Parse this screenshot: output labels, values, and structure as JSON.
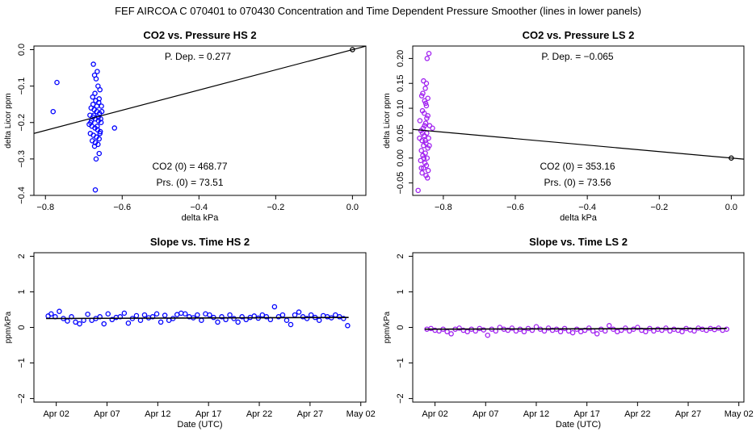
{
  "figure": {
    "suptitle": "FEF   AIRCOA C   070401 to 070430   Concentration and Time Dependent Pressure Smoother (lines in lower panels)"
  },
  "chart_data": [
    {
      "type": "scatter",
      "title": "CO2 vs. Pressure HS 2",
      "xlabel": "delta kPa",
      "ylabel": "delta Licor ppm",
      "xlim": [
        -0.83,
        0.035
      ],
      "ylim": [
        -0.4,
        0.01
      ],
      "xticks": [
        -0.8,
        -0.6,
        -0.4,
        -0.2,
        0.0
      ],
      "xtick_labels": [
        "−0.8",
        "−0.6",
        "−0.4",
        "−0.2",
        "0.0"
      ],
      "yticks": [
        0.0,
        -0.1,
        -0.2,
        -0.3,
        -0.4
      ],
      "ytick_labels": [
        "0.0",
        "−0.1",
        "−0.2",
        "−0.3",
        "−0.4"
      ],
      "point_color": "#0000ff",
      "fit_line": {
        "slope": 0.277,
        "intercept": 0.0,
        "color": "#000000"
      },
      "origin_point": {
        "x": 0.0,
        "y": 0.0
      },
      "annotations": {
        "p_dep": "P. Dep. =  0.277",
        "co2_zero": "CO2 (0) =  468.77",
        "prs_zero": "Prs. (0) =  73.51"
      },
      "points": [
        {
          "x": -0.78,
          "y": -0.17
        },
        {
          "x": -0.77,
          "y": -0.09
        },
        {
          "x": -0.62,
          "y": -0.215
        },
        {
          "x": -0.675,
          "y": -0.04
        },
        {
          "x": -0.67,
          "y": -0.385
        },
        {
          "x": -0.66,
          "y": -0.285
        },
        {
          "x": -0.665,
          "y": -0.06
        },
        {
          "x": -0.672,
          "y": -0.07
        },
        {
          "x": -0.668,
          "y": -0.3
        },
        {
          "x": -0.663,
          "y": -0.1
        },
        {
          "x": -0.658,
          "y": -0.11
        },
        {
          "x": -0.677,
          "y": -0.13
        },
        {
          "x": -0.669,
          "y": -0.14
        },
        {
          "x": -0.661,
          "y": -0.145
        },
        {
          "x": -0.654,
          "y": -0.155
        },
        {
          "x": -0.681,
          "y": -0.16
        },
        {
          "x": -0.673,
          "y": -0.165
        },
        {
          "x": -0.666,
          "y": -0.17
        },
        {
          "x": -0.659,
          "y": -0.175
        },
        {
          "x": -0.684,
          "y": -0.18
        },
        {
          "x": -0.676,
          "y": -0.185
        },
        {
          "x": -0.67,
          "y": -0.19
        },
        {
          "x": -0.662,
          "y": -0.195
        },
        {
          "x": -0.655,
          "y": -0.2
        },
        {
          "x": -0.686,
          "y": -0.205
        },
        {
          "x": -0.679,
          "y": -0.21
        },
        {
          "x": -0.671,
          "y": -0.215
        },
        {
          "x": -0.664,
          "y": -0.22
        },
        {
          "x": -0.657,
          "y": -0.225
        },
        {
          "x": -0.683,
          "y": -0.23
        },
        {
          "x": -0.675,
          "y": -0.235
        },
        {
          "x": -0.667,
          "y": -0.24
        },
        {
          "x": -0.66,
          "y": -0.245
        },
        {
          "x": -0.678,
          "y": -0.25
        },
        {
          "x": -0.67,
          "y": -0.255
        },
        {
          "x": -0.663,
          "y": -0.26
        },
        {
          "x": -0.682,
          "y": -0.2
        },
        {
          "x": -0.674,
          "y": -0.18
        },
        {
          "x": -0.656,
          "y": -0.19
        },
        {
          "x": -0.665,
          "y": -0.21
        },
        {
          "x": -0.671,
          "y": -0.12
        },
        {
          "x": -0.66,
          "y": -0.135
        },
        {
          "x": -0.668,
          "y": -0.08
        },
        {
          "x": -0.676,
          "y": -0.15
        },
        {
          "x": -0.653,
          "y": -0.17
        },
        {
          "x": -0.68,
          "y": -0.195
        },
        {
          "x": -0.658,
          "y": -0.23
        },
        {
          "x": -0.672,
          "y": -0.265
        },
        {
          "x": -0.666,
          "y": -0.155
        },
        {
          "x": -0.662,
          "y": -0.185
        }
      ]
    },
    {
      "type": "scatter",
      "title": "CO2 vs. Pressure LS 2",
      "xlabel": "delta kPa",
      "ylabel": "delta Licor ppm",
      "xlim": [
        -0.885,
        0.035
      ],
      "ylim": [
        -0.075,
        0.225
      ],
      "xticks": [
        -0.8,
        -0.6,
        -0.4,
        -0.2,
        0.0
      ],
      "xtick_labels": [
        "−0.8",
        "−0.6",
        "−0.4",
        "−0.2",
        "0.0"
      ],
      "yticks": [
        -0.05,
        0.0,
        0.05,
        0.1,
        0.15,
        0.2
      ],
      "ytick_labels": [
        "−0.05",
        "0.00",
        "0.05",
        "0.10",
        "0.15",
        "0.20"
      ],
      "point_color": "#a020f0",
      "fit_line": {
        "slope": -0.065,
        "intercept": 0.0,
        "color": "#000000"
      },
      "origin_point": {
        "x": 0.0,
        "y": 0.0
      },
      "annotations": {
        "p_dep": "P. Dep. =  −0.065",
        "co2_zero": "CO2 (0) =  353.16",
        "prs_zero": "Prs. (0) =  73.56"
      },
      "points": [
        {
          "x": -0.87,
          "y": -0.065
        },
        {
          "x": -0.84,
          "y": 0.21
        },
        {
          "x": -0.845,
          "y": 0.2
        },
        {
          "x": -0.855,
          "y": 0.155
        },
        {
          "x": -0.85,
          "y": 0.14
        },
        {
          "x": -0.86,
          "y": 0.125
        },
        {
          "x": -0.852,
          "y": 0.115
        },
        {
          "x": -0.847,
          "y": 0.105
        },
        {
          "x": -0.858,
          "y": 0.095
        },
        {
          "x": -0.843,
          "y": 0.085
        },
        {
          "x": -0.865,
          "y": 0.075
        },
        {
          "x": -0.849,
          "y": 0.07
        },
        {
          "x": -0.838,
          "y": 0.065
        },
        {
          "x": -0.856,
          "y": 0.06
        },
        {
          "x": -0.83,
          "y": 0.06
        },
        {
          "x": -0.862,
          "y": 0.055
        },
        {
          "x": -0.846,
          "y": 0.05
        },
        {
          "x": -0.853,
          "y": 0.045
        },
        {
          "x": -0.841,
          "y": 0.04
        },
        {
          "x": -0.859,
          "y": 0.035
        },
        {
          "x": -0.848,
          "y": 0.03
        },
        {
          "x": -0.855,
          "y": 0.025
        },
        {
          "x": -0.843,
          "y": 0.02
        },
        {
          "x": -0.861,
          "y": 0.015
        },
        {
          "x": -0.85,
          "y": 0.01
        },
        {
          "x": -0.857,
          "y": 0.005
        },
        {
          "x": -0.845,
          "y": 0.0
        },
        {
          "x": -0.863,
          "y": -0.005
        },
        {
          "x": -0.851,
          "y": -0.01
        },
        {
          "x": -0.847,
          "y": -0.015
        },
        {
          "x": -0.855,
          "y": -0.02
        },
        {
          "x": -0.842,
          "y": -0.025
        },
        {
          "x": -0.859,
          "y": -0.03
        },
        {
          "x": -0.848,
          "y": -0.035
        },
        {
          "x": -0.844,
          "y": -0.04
        },
        {
          "x": -0.853,
          "y": 0.09
        },
        {
          "x": -0.849,
          "y": 0.11
        },
        {
          "x": -0.857,
          "y": 0.13
        },
        {
          "x": -0.846,
          "y": 0.08
        },
        {
          "x": -0.852,
          "y": 0.065
        },
        {
          "x": -0.866,
          "y": 0.04
        },
        {
          "x": -0.839,
          "y": 0.025
        },
        {
          "x": -0.854,
          "y": 0.0
        },
        {
          "x": -0.861,
          "y": -0.02
        },
        {
          "x": -0.847,
          "y": 0.15
        },
        {
          "x": -0.843,
          "y": 0.12
        },
        {
          "x": -0.858,
          "y": 0.05
        },
        {
          "x": -0.85,
          "y": 0.035
        }
      ]
    },
    {
      "type": "scatter",
      "title": "Slope vs. Time HS 2",
      "xlabel": "Date (UTC)",
      "ylabel": "ppm/kPa",
      "xlim": [
        -1.2,
        31.5
      ],
      "ylim": [
        -2.1,
        2.1
      ],
      "xticks": [
        1,
        6,
        11,
        16,
        21,
        26,
        31
      ],
      "xtick_labels": [
        "Apr 02",
        "Apr 07",
        "Apr 12",
        "Apr 17",
        "Apr 22",
        "Apr 27",
        "May 02"
      ],
      "yticks": [
        -2,
        -1,
        0,
        1,
        2
      ],
      "ytick_labels": [
        "−2",
        "−1",
        "0",
        "1",
        "2"
      ],
      "point_color": "#0000ff",
      "smoother_line": {
        "x": [
          0,
          29.8
        ],
        "y": [
          0.25,
          0.28
        ],
        "color": "#000000"
      },
      "points": [
        {
          "x": 0.2,
          "y": 0.32
        },
        {
          "x": 0.5,
          "y": 0.38
        },
        {
          "x": 0.9,
          "y": 0.3
        },
        {
          "x": 1.3,
          "y": 0.45
        },
        {
          "x": 1.7,
          "y": 0.25
        },
        {
          "x": 2.1,
          "y": 0.18
        },
        {
          "x": 2.5,
          "y": 0.3
        },
        {
          "x": 2.9,
          "y": 0.15
        },
        {
          "x": 3.3,
          "y": 0.1
        },
        {
          "x": 3.7,
          "y": 0.2
        },
        {
          "x": 4.1,
          "y": 0.37
        },
        {
          "x": 4.5,
          "y": 0.2
        },
        {
          "x": 4.9,
          "y": 0.25
        },
        {
          "x": 5.3,
          "y": 0.3
        },
        {
          "x": 5.7,
          "y": 0.1
        },
        {
          "x": 6.1,
          "y": 0.38
        },
        {
          "x": 6.5,
          "y": 0.22
        },
        {
          "x": 6.9,
          "y": 0.28
        },
        {
          "x": 7.3,
          "y": 0.3
        },
        {
          "x": 7.7,
          "y": 0.4
        },
        {
          "x": 8.1,
          "y": 0.12
        },
        {
          "x": 8.5,
          "y": 0.25
        },
        {
          "x": 8.9,
          "y": 0.33
        },
        {
          "x": 9.3,
          "y": 0.2
        },
        {
          "x": 9.7,
          "y": 0.35
        },
        {
          "x": 10.1,
          "y": 0.27
        },
        {
          "x": 10.5,
          "y": 0.3
        },
        {
          "x": 10.9,
          "y": 0.38
        },
        {
          "x": 11.3,
          "y": 0.15
        },
        {
          "x": 11.7,
          "y": 0.34
        },
        {
          "x": 12.1,
          "y": 0.2
        },
        {
          "x": 12.5,
          "y": 0.25
        },
        {
          "x": 12.9,
          "y": 0.36
        },
        {
          "x": 13.3,
          "y": 0.4
        },
        {
          "x": 13.7,
          "y": 0.38
        },
        {
          "x": 14.1,
          "y": 0.3
        },
        {
          "x": 14.5,
          "y": 0.27
        },
        {
          "x": 14.9,
          "y": 0.35
        },
        {
          "x": 15.3,
          "y": 0.2
        },
        {
          "x": 15.7,
          "y": 0.38
        },
        {
          "x": 16.1,
          "y": 0.35
        },
        {
          "x": 16.5,
          "y": 0.28
        },
        {
          "x": 16.9,
          "y": 0.15
        },
        {
          "x": 17.3,
          "y": 0.3
        },
        {
          "x": 17.7,
          "y": 0.22
        },
        {
          "x": 18.1,
          "y": 0.35
        },
        {
          "x": 18.5,
          "y": 0.25
        },
        {
          "x": 18.9,
          "y": 0.15
        },
        {
          "x": 19.3,
          "y": 0.3
        },
        {
          "x": 19.7,
          "y": 0.22
        },
        {
          "x": 20.1,
          "y": 0.28
        },
        {
          "x": 20.5,
          "y": 0.32
        },
        {
          "x": 20.9,
          "y": 0.26
        },
        {
          "x": 21.3,
          "y": 0.35
        },
        {
          "x": 21.7,
          "y": 0.3
        },
        {
          "x": 22.1,
          "y": 0.22
        },
        {
          "x": 22.5,
          "y": 0.58
        },
        {
          "x": 22.9,
          "y": 0.3
        },
        {
          "x": 23.3,
          "y": 0.35
        },
        {
          "x": 23.7,
          "y": 0.2
        },
        {
          "x": 24.1,
          "y": 0.08
        },
        {
          "x": 24.5,
          "y": 0.35
        },
        {
          "x": 24.9,
          "y": 0.43
        },
        {
          "x": 25.3,
          "y": 0.3
        },
        {
          "x": 25.7,
          "y": 0.25
        },
        {
          "x": 26.1,
          "y": 0.35
        },
        {
          "x": 26.5,
          "y": 0.28
        },
        {
          "x": 26.9,
          "y": 0.2
        },
        {
          "x": 27.3,
          "y": 0.33
        },
        {
          "x": 27.7,
          "y": 0.3
        },
        {
          "x": 28.1,
          "y": 0.27
        },
        {
          "x": 28.5,
          "y": 0.35
        },
        {
          "x": 28.9,
          "y": 0.3
        },
        {
          "x": 29.3,
          "y": 0.25
        },
        {
          "x": 29.7,
          "y": 0.05
        }
      ]
    },
    {
      "type": "scatter",
      "title": "Slope vs. Time LS 2",
      "xlabel": "Date (UTC)",
      "ylabel": "ppm/kPa",
      "xlim": [
        -1.2,
        31.5
      ],
      "ylim": [
        -2.1,
        2.1
      ],
      "xticks": [
        1,
        6,
        11,
        16,
        21,
        26,
        31
      ],
      "xtick_labels": [
        "Apr 02",
        "Apr 07",
        "Apr 12",
        "Apr 17",
        "Apr 22",
        "Apr 27",
        "May 02"
      ],
      "yticks": [
        -2,
        -1,
        0,
        1,
        2
      ],
      "ytick_labels": [
        "−2",
        "−1",
        "0",
        "1",
        "2"
      ],
      "point_color": "#a020f0",
      "smoother_line": {
        "x": [
          0,
          29.8
        ],
        "y": [
          -0.05,
          -0.03
        ],
        "color": "#000000"
      },
      "points": [
        {
          "x": 0.2,
          "y": -0.05
        },
        {
          "x": 0.6,
          "y": -0.03
        },
        {
          "x": 1.0,
          "y": -0.08
        },
        {
          "x": 1.4,
          "y": -0.1
        },
        {
          "x": 1.8,
          "y": -0.05
        },
        {
          "x": 2.2,
          "y": -0.12
        },
        {
          "x": 2.6,
          "y": -0.18
        },
        {
          "x": 3.0,
          "y": -0.05
        },
        {
          "x": 3.4,
          "y": -0.02
        },
        {
          "x": 3.8,
          "y": -0.08
        },
        {
          "x": 4.2,
          "y": -0.12
        },
        {
          "x": 4.6,
          "y": -0.05
        },
        {
          "x": 5.0,
          "y": -0.1
        },
        {
          "x": 5.4,
          "y": -0.03
        },
        {
          "x": 5.8,
          "y": -0.07
        },
        {
          "x": 6.2,
          "y": -0.22
        },
        {
          "x": 6.6,
          "y": -0.05
        },
        {
          "x": 7.0,
          "y": -0.1
        },
        {
          "x": 7.4,
          "y": 0.0
        },
        {
          "x": 7.8,
          "y": -0.05
        },
        {
          "x": 8.2,
          "y": -0.08
        },
        {
          "x": 8.6,
          "y": -0.02
        },
        {
          "x": 9.0,
          "y": -0.1
        },
        {
          "x": 9.4,
          "y": -0.05
        },
        {
          "x": 9.8,
          "y": -0.12
        },
        {
          "x": 10.2,
          "y": -0.03
        },
        {
          "x": 10.6,
          "y": -0.08
        },
        {
          "x": 11.0,
          "y": 0.02
        },
        {
          "x": 11.4,
          "y": -0.05
        },
        {
          "x": 11.8,
          "y": -0.1
        },
        {
          "x": 12.2,
          "y": -0.02
        },
        {
          "x": 12.6,
          "y": -0.08
        },
        {
          "x": 13.0,
          "y": -0.05
        },
        {
          "x": 13.4,
          "y": -0.12
        },
        {
          "x": 13.8,
          "y": -0.03
        },
        {
          "x": 14.2,
          "y": -0.1
        },
        {
          "x": 14.6,
          "y": -0.15
        },
        {
          "x": 15.0,
          "y": -0.05
        },
        {
          "x": 15.4,
          "y": -0.12
        },
        {
          "x": 15.8,
          "y": -0.08
        },
        {
          "x": 16.2,
          "y": -0.02
        },
        {
          "x": 16.6,
          "y": -0.1
        },
        {
          "x": 17.0,
          "y": -0.18
        },
        {
          "x": 17.4,
          "y": -0.05
        },
        {
          "x": 17.8,
          "y": -0.1
        },
        {
          "x": 18.2,
          "y": 0.05
        },
        {
          "x": 18.6,
          "y": -0.05
        },
        {
          "x": 19.0,
          "y": -0.12
        },
        {
          "x": 19.4,
          "y": -0.08
        },
        {
          "x": 19.8,
          "y": -0.02
        },
        {
          "x": 20.2,
          "y": -0.1
        },
        {
          "x": 20.6,
          "y": -0.05
        },
        {
          "x": 21.0,
          "y": 0.0
        },
        {
          "x": 21.4,
          "y": -0.08
        },
        {
          "x": 21.8,
          "y": -0.12
        },
        {
          "x": 22.2,
          "y": -0.03
        },
        {
          "x": 22.6,
          "y": -0.1
        },
        {
          "x": 23.0,
          "y": -0.05
        },
        {
          "x": 23.4,
          "y": -0.08
        },
        {
          "x": 23.8,
          "y": -0.02
        },
        {
          "x": 24.2,
          "y": -0.1
        },
        {
          "x": 24.6,
          "y": -0.05
        },
        {
          "x": 25.0,
          "y": -0.08
        },
        {
          "x": 25.4,
          "y": -0.12
        },
        {
          "x": 25.8,
          "y": -0.03
        },
        {
          "x": 26.2,
          "y": -0.07
        },
        {
          "x": 26.6,
          "y": -0.1
        },
        {
          "x": 27.0,
          "y": -0.02
        },
        {
          "x": 27.4,
          "y": -0.05
        },
        {
          "x": 27.8,
          "y": -0.08
        },
        {
          "x": 28.2,
          "y": -0.03
        },
        {
          "x": 28.6,
          "y": -0.06
        },
        {
          "x": 29.0,
          "y": -0.02
        },
        {
          "x": 29.4,
          "y": -0.08
        },
        {
          "x": 29.8,
          "y": -0.05
        }
      ]
    }
  ]
}
